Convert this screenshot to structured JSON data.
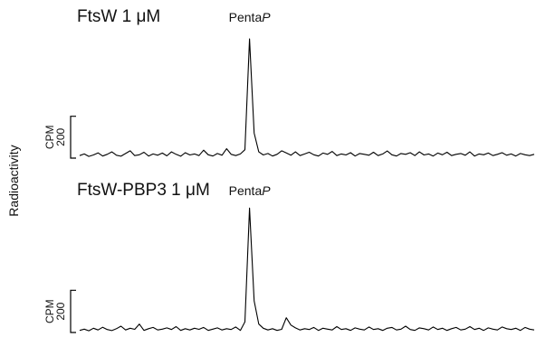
{
  "ylabel": "Radioactivity",
  "chart_data": [
    {
      "type": "line",
      "title": "FtsW 1 μM",
      "annotation": {
        "text": "Penta",
        "italic": "P"
      },
      "color": "#000000",
      "ylim": [
        0,
        600
      ],
      "scale_bar": 200,
      "scale_bar_unit": "CPM",
      "values": [
        12,
        20,
        8,
        15,
        25,
        10,
        18,
        30,
        14,
        9,
        22,
        35,
        12,
        16,
        28,
        10,
        20,
        14,
        24,
        11,
        30,
        18,
        9,
        26,
        15,
        20,
        12,
        38,
        16,
        10,
        22,
        14,
        45,
        18,
        12,
        20,
        40,
        570,
        120,
        30,
        15,
        22,
        10,
        18,
        35,
        25,
        14,
        30,
        12,
        20,
        28,
        16,
        10,
        24,
        18,
        32,
        12,
        20,
        15,
        26,
        10,
        22,
        18,
        14,
        28,
        12,
        20,
        34,
        16,
        10,
        22,
        18,
        26,
        12,
        30,
        15,
        20,
        10,
        24,
        16,
        28,
        12,
        18,
        22,
        14,
        30,
        10,
        20,
        16,
        24,
        12,
        18,
        26,
        14,
        20,
        10,
        22,
        16,
        12,
        18
      ]
    },
    {
      "type": "line",
      "title": "FtsW-PBP3 1 μM",
      "annotation": {
        "text": "Penta",
        "italic": "P"
      },
      "color": "#000000",
      "ylim": [
        0,
        600
      ],
      "scale_bar": 200,
      "scale_bar_unit": "CPM",
      "values": [
        10,
        16,
        8,
        20,
        12,
        25,
        14,
        9,
        18,
        30,
        12,
        20,
        15,
        40,
        10,
        18,
        24,
        12,
        16,
        22,
        14,
        28,
        10,
        18,
        12,
        20,
        15,
        24,
        10,
        16,
        22,
        12,
        18,
        14,
        26,
        10,
        50,
        590,
        150,
        40,
        20,
        12,
        18,
        10,
        15,
        70,
        35,
        22,
        12,
        18,
        14,
        24,
        10,
        20,
        16,
        12,
        28,
        14,
        18,
        10,
        22,
        16,
        12,
        26,
        14,
        18,
        10,
        20,
        24,
        12,
        16,
        30,
        14,
        10,
        22,
        18,
        12,
        26,
        14,
        20,
        10,
        18,
        24,
        12,
        16,
        28,
        14,
        20,
        10,
        22,
        16,
        12,
        26,
        18,
        14,
        20,
        10,
        24,
        16,
        12
      ]
    }
  ]
}
